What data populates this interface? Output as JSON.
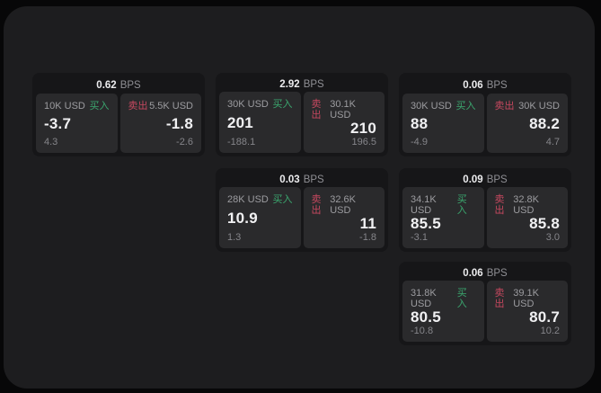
{
  "labels": {
    "buy": "买入",
    "sell": "卖出",
    "bps_unit": "BPS"
  },
  "colors": {
    "buy_accent": "#3ba76f",
    "sell_accent": "#c6485f",
    "panel_bg": "#1d1d1f",
    "card_bg": "#161618",
    "tile_bg": "#2a2a2c"
  },
  "cards": [
    {
      "bps": "0.62",
      "row": 0,
      "col": 0,
      "buy": {
        "size": "10K USD",
        "price": "-3.7",
        "delta": "4.3"
      },
      "sell": {
        "size": "5.5K USD",
        "price": "-1.8",
        "delta": "-2.6"
      }
    },
    {
      "bps": "2.92",
      "row": 0,
      "col": 1,
      "buy": {
        "size": "30K USD",
        "price": "201",
        "delta": "-188.1"
      },
      "sell": {
        "size": "30.1K USD",
        "price": "210",
        "delta": "196.5"
      }
    },
    {
      "bps": "0.06",
      "row": 0,
      "col": 2,
      "buy": {
        "size": "30K USD",
        "price": "88",
        "delta": "-4.9"
      },
      "sell": {
        "size": "30K USD",
        "price": "88.2",
        "delta": "4.7"
      }
    },
    {
      "bps": "0.03",
      "row": 1,
      "col": 1,
      "buy": {
        "size": "28K USD",
        "price": "10.9",
        "delta": "1.3"
      },
      "sell": {
        "size": "32.6K USD",
        "price": "11",
        "delta": "-1.8"
      }
    },
    {
      "bps": "0.09",
      "row": 1,
      "col": 2,
      "buy": {
        "size": "34.1K USD",
        "price": "85.5",
        "delta": "-3.1"
      },
      "sell": {
        "size": "32.8K USD",
        "price": "85.8",
        "delta": "3.0"
      }
    },
    {
      "bps": "0.06",
      "row": 2,
      "col": 2,
      "buy": {
        "size": "31.8K USD",
        "price": "80.5",
        "delta": "-10.8"
      },
      "sell": {
        "size": "39.1K USD",
        "price": "80.7",
        "delta": "10.2"
      }
    }
  ]
}
